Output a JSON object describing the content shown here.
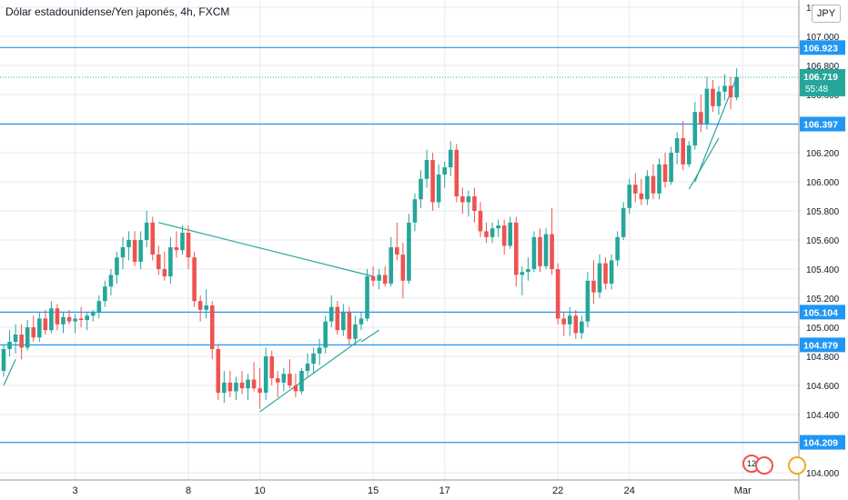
{
  "header": {
    "title": "Dólar estadounidense/Yen japonés, 4h, FXCM",
    "currency": "JPY"
  },
  "events": {
    "count_label": "12"
  },
  "colors": {
    "up": "#26a69a",
    "down": "#ef5350",
    "level_line": "#2196f3",
    "trend_line": "#26a69a",
    "grid": "#e7e9ef",
    "axis_text": "#131722"
  },
  "chart_data": {
    "type": "candlestick",
    "title": "Dólar estadounidense/Yen japonés, 4h, FXCM",
    "ylim": [
      103.95,
      107.25
    ],
    "y_ticks": [
      "104.000",
      "104.200",
      "104.400",
      "104.600",
      "104.800",
      "105.000",
      "105.200",
      "105.400",
      "105.600",
      "105.800",
      "106.000",
      "106.200",
      "106.400",
      "106.600",
      "106.800",
      "107.000",
      "107.200"
    ],
    "x_ticks": [
      {
        "label": "3",
        "bar": 12
      },
      {
        "label": "8",
        "bar": 31
      },
      {
        "label": "10",
        "bar": 43
      },
      {
        "label": "15",
        "bar": 62
      },
      {
        "label": "17",
        "bar": 74
      },
      {
        "label": "22",
        "bar": 93
      },
      {
        "label": "24",
        "bar": 105
      },
      {
        "label": "Mar",
        "bar": 124
      }
    ],
    "horizontal_levels": [
      106.923,
      106.397,
      105.104,
      104.879,
      104.209
    ],
    "last_price": {
      "value": "106.719",
      "countdown": "55:48"
    },
    "grid": true,
    "candles": [
      [
        104.7,
        104.88,
        104.66,
        104.85
      ],
      [
        104.85,
        104.98,
        104.8,
        104.9
      ],
      [
        104.9,
        105.02,
        104.82,
        104.95
      ],
      [
        104.95,
        105.02,
        104.78,
        104.86
      ],
      [
        104.86,
        105.05,
        104.84,
        105.0
      ],
      [
        105.0,
        105.08,
        104.9,
        104.93
      ],
      [
        104.93,
        105.1,
        104.9,
        105.06
      ],
      [
        105.06,
        105.12,
        104.95,
        104.98
      ],
      [
        104.98,
        105.18,
        104.96,
        105.13
      ],
      [
        105.13,
        105.16,
        104.98,
        105.02
      ],
      [
        105.02,
        105.1,
        104.96,
        105.07
      ],
      [
        105.07,
        105.12,
        105.02,
        105.04
      ],
      [
        105.04,
        105.09,
        104.96,
        105.06
      ],
      [
        105.06,
        105.14,
        105.0,
        105.05
      ],
      [
        105.05,
        105.1,
        104.98,
        105.08
      ],
      [
        105.08,
        105.12,
        105.04,
        105.1
      ],
      [
        105.1,
        105.22,
        105.06,
        105.18
      ],
      [
        105.18,
        105.32,
        105.14,
        105.28
      ],
      [
        105.28,
        105.4,
        105.22,
        105.36
      ],
      [
        105.36,
        105.52,
        105.3,
        105.48
      ],
      [
        105.48,
        105.62,
        105.4,
        105.55
      ],
      [
        105.55,
        105.66,
        105.46,
        105.6
      ],
      [
        105.6,
        105.66,
        105.42,
        105.45
      ],
      [
        105.45,
        105.66,
        105.4,
        105.6
      ],
      [
        105.6,
        105.8,
        105.55,
        105.72
      ],
      [
        105.72,
        105.76,
        105.46,
        105.5
      ],
      [
        105.5,
        105.56,
        105.36,
        105.4
      ],
      [
        105.4,
        105.52,
        105.32,
        105.35
      ],
      [
        105.35,
        105.62,
        105.3,
        105.55
      ],
      [
        105.55,
        105.66,
        105.48,
        105.53
      ],
      [
        105.53,
        105.7,
        105.5,
        105.65
      ],
      [
        105.65,
        105.7,
        105.4,
        105.48
      ],
      [
        105.48,
        105.52,
        105.14,
        105.18
      ],
      [
        105.18,
        105.22,
        105.04,
        105.12
      ],
      [
        105.12,
        105.26,
        105.06,
        105.15
      ],
      [
        105.15,
        105.18,
        104.78,
        104.85
      ],
      [
        104.85,
        104.88,
        104.5,
        104.55
      ],
      [
        104.55,
        104.7,
        104.48,
        104.62
      ],
      [
        104.62,
        104.7,
        104.52,
        104.56
      ],
      [
        104.56,
        104.66,
        104.5,
        104.62
      ],
      [
        104.62,
        104.7,
        104.54,
        104.58
      ],
      [
        104.58,
        104.68,
        104.5,
        104.64
      ],
      [
        104.64,
        104.76,
        104.56,
        104.58
      ],
      [
        104.58,
        104.72,
        104.44,
        104.55
      ],
      [
        104.55,
        104.86,
        104.5,
        104.8
      ],
      [
        104.8,
        104.84,
        104.6,
        104.65
      ],
      [
        104.65,
        104.7,
        104.52,
        104.62
      ],
      [
        104.62,
        104.72,
        104.56,
        104.68
      ],
      [
        104.68,
        104.78,
        104.58,
        104.6
      ],
      [
        104.6,
        104.68,
        104.52,
        104.56
      ],
      [
        104.56,
        104.72,
        104.54,
        104.7
      ],
      [
        104.7,
        104.82,
        104.66,
        104.75
      ],
      [
        104.75,
        104.86,
        104.68,
        104.82
      ],
      [
        104.82,
        104.92,
        104.74,
        104.86
      ],
      [
        104.86,
        105.08,
        104.82,
        105.04
      ],
      [
        105.04,
        105.22,
        105.0,
        105.14
      ],
      [
        105.14,
        105.18,
        104.95,
        104.98
      ],
      [
        104.98,
        105.16,
        104.94,
        105.1
      ],
      [
        105.1,
        105.14,
        104.88,
        104.92
      ],
      [
        104.92,
        105.08,
        104.88,
        105.02
      ],
      [
        105.02,
        105.1,
        104.98,
        105.06
      ],
      [
        105.06,
        105.4,
        105.04,
        105.35
      ],
      [
        105.35,
        105.42,
        105.28,
        105.32
      ],
      [
        105.32,
        105.4,
        105.26,
        105.36
      ],
      [
        105.36,
        105.42,
        105.28,
        105.3
      ],
      [
        105.3,
        105.62,
        105.28,
        105.55
      ],
      [
        105.55,
        105.72,
        105.46,
        105.5
      ],
      [
        105.5,
        105.58,
        105.2,
        105.32
      ],
      [
        105.32,
        105.78,
        105.3,
        105.72
      ],
      [
        105.72,
        105.92,
        105.66,
        105.88
      ],
      [
        105.88,
        106.08,
        105.82,
        106.02
      ],
      [
        106.02,
        106.22,
        105.96,
        106.15
      ],
      [
        106.15,
        106.2,
        105.8,
        105.86
      ],
      [
        105.86,
        106.12,
        105.82,
        106.05
      ],
      [
        106.05,
        106.14,
        105.96,
        106.1
      ],
      [
        106.1,
        106.28,
        106.04,
        106.22
      ],
      [
        106.22,
        106.26,
        105.86,
        105.9
      ],
      [
        105.9,
        105.96,
        105.78,
        105.86
      ],
      [
        105.86,
        105.94,
        105.76,
        105.9
      ],
      [
        105.9,
        105.96,
        105.72,
        105.8
      ],
      [
        105.8,
        105.86,
        105.62,
        105.66
      ],
      [
        105.66,
        105.72,
        105.58,
        105.62
      ],
      [
        105.62,
        105.72,
        105.58,
        105.68
      ],
      [
        105.68,
        105.74,
        105.62,
        105.7
      ],
      [
        105.7,
        105.74,
        105.5,
        105.56
      ],
      [
        105.56,
        105.76,
        105.54,
        105.72
      ],
      [
        105.72,
        105.76,
        105.28,
        105.36
      ],
      [
        105.36,
        105.42,
        105.22,
        105.38
      ],
      [
        105.38,
        105.48,
        105.32,
        105.4
      ],
      [
        105.4,
        105.66,
        105.38,
        105.62
      ],
      [
        105.62,
        105.68,
        105.38,
        105.42
      ],
      [
        105.42,
        105.68,
        105.4,
        105.64
      ],
      [
        105.64,
        105.82,
        105.36,
        105.4
      ],
      [
        105.4,
        105.44,
        105.02,
        105.06
      ],
      [
        105.06,
        105.1,
        104.94,
        105.02
      ],
      [
        105.02,
        105.14,
        104.94,
        105.08
      ],
      [
        105.08,
        105.12,
        104.92,
        104.96
      ],
      [
        104.96,
        105.08,
        104.92,
        105.04
      ],
      [
        105.04,
        105.38,
        105.0,
        105.32
      ],
      [
        105.32,
        105.46,
        105.16,
        105.24
      ],
      [
        105.24,
        105.5,
        105.2,
        105.44
      ],
      [
        105.44,
        105.48,
        105.26,
        105.3
      ],
      [
        105.3,
        105.5,
        105.26,
        105.46
      ],
      [
        105.46,
        105.66,
        105.42,
        105.62
      ],
      [
        105.62,
        105.86,
        105.6,
        105.82
      ],
      [
        105.82,
        106.02,
        105.78,
        105.98
      ],
      [
        105.98,
        106.06,
        105.86,
        105.92
      ],
      [
        105.92,
        106.02,
        105.84,
        105.88
      ],
      [
        105.88,
        106.08,
        105.84,
        106.04
      ],
      [
        106.04,
        106.12,
        105.88,
        105.92
      ],
      [
        105.92,
        106.16,
        105.88,
        106.12
      ],
      [
        106.12,
        106.2,
        105.96,
        106.0
      ],
      [
        106.0,
        106.24,
        105.98,
        106.2
      ],
      [
        106.2,
        106.34,
        106.12,
        106.3
      ],
      [
        106.3,
        106.42,
        106.08,
        106.12
      ],
      [
        106.12,
        106.28,
        106.1,
        106.25
      ],
      [
        106.25,
        106.55,
        106.22,
        106.48
      ],
      [
        106.48,
        106.6,
        106.34,
        106.4
      ],
      [
        106.4,
        106.72,
        106.36,
        106.64
      ],
      [
        106.64,
        106.7,
        106.48,
        106.52
      ],
      [
        106.52,
        106.66,
        106.46,
        106.62
      ],
      [
        106.62,
        106.74,
        106.56,
        106.66
      ],
      [
        106.66,
        106.72,
        106.5,
        106.58
      ],
      [
        106.58,
        106.78,
        106.56,
        106.72
      ]
    ]
  }
}
